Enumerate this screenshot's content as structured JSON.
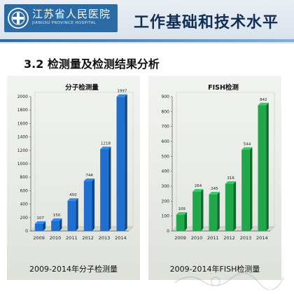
{
  "header": {
    "logo_name": "江苏省人民医院",
    "logo_sub": "JIANGSU PROVINCE HOSPITAL",
    "title": "工作基础和技术水平"
  },
  "section": {
    "title": "3.2  检测量及检测结果分析"
  },
  "colors": {
    "logo_bg": "#2a6aa5",
    "title_text": "#0f2f56",
    "blue_bar": "#1f6fd0",
    "green_bar": "#1fa84a"
  },
  "chart_data": [
    {
      "type": "bar",
      "title": "分子检测量",
      "caption": "2009-2014年分子检测量",
      "categories": [
        "2009",
        "2010",
        "2011",
        "2012",
        "2013",
        "2014"
      ],
      "values": [
        107,
        150,
        450,
        744,
        1218,
        1997
      ],
      "data_labels": [
        "107",
        "150",
        "450",
        "744",
        "1218",
        "1997"
      ],
      "ylim": [
        0,
        2000
      ],
      "yticks": [
        "0",
        "200",
        "400",
        "600",
        "800",
        "1000",
        "1200",
        "1400",
        "1600",
        "1800",
        "2000"
      ],
      "ytick_values": [
        0,
        200,
        400,
        600,
        800,
        1000,
        1200,
        1400,
        1600,
        1800,
        2000
      ],
      "grid": false,
      "color": "#1f6fd0"
    },
    {
      "type": "bar",
      "title": "FISH检测",
      "caption": "2009-2014年FISH检测量",
      "categories": [
        "2009",
        "2010",
        "2011",
        "2012",
        "2013",
        "2014"
      ],
      "values": [
        109,
        264,
        245,
        316,
        544,
        842
      ],
      "data_labels": [
        "109",
        "264",
        "245",
        "316",
        "544",
        "842"
      ],
      "ylim": [
        0,
        900
      ],
      "yticks": [
        "0",
        "100",
        "200",
        "300",
        "400",
        "500",
        "600",
        "700",
        "800",
        "900"
      ],
      "ytick_values": [
        0,
        100,
        200,
        300,
        400,
        500,
        600,
        700,
        800,
        900
      ],
      "grid": false,
      "color": "#1fa84a"
    }
  ]
}
